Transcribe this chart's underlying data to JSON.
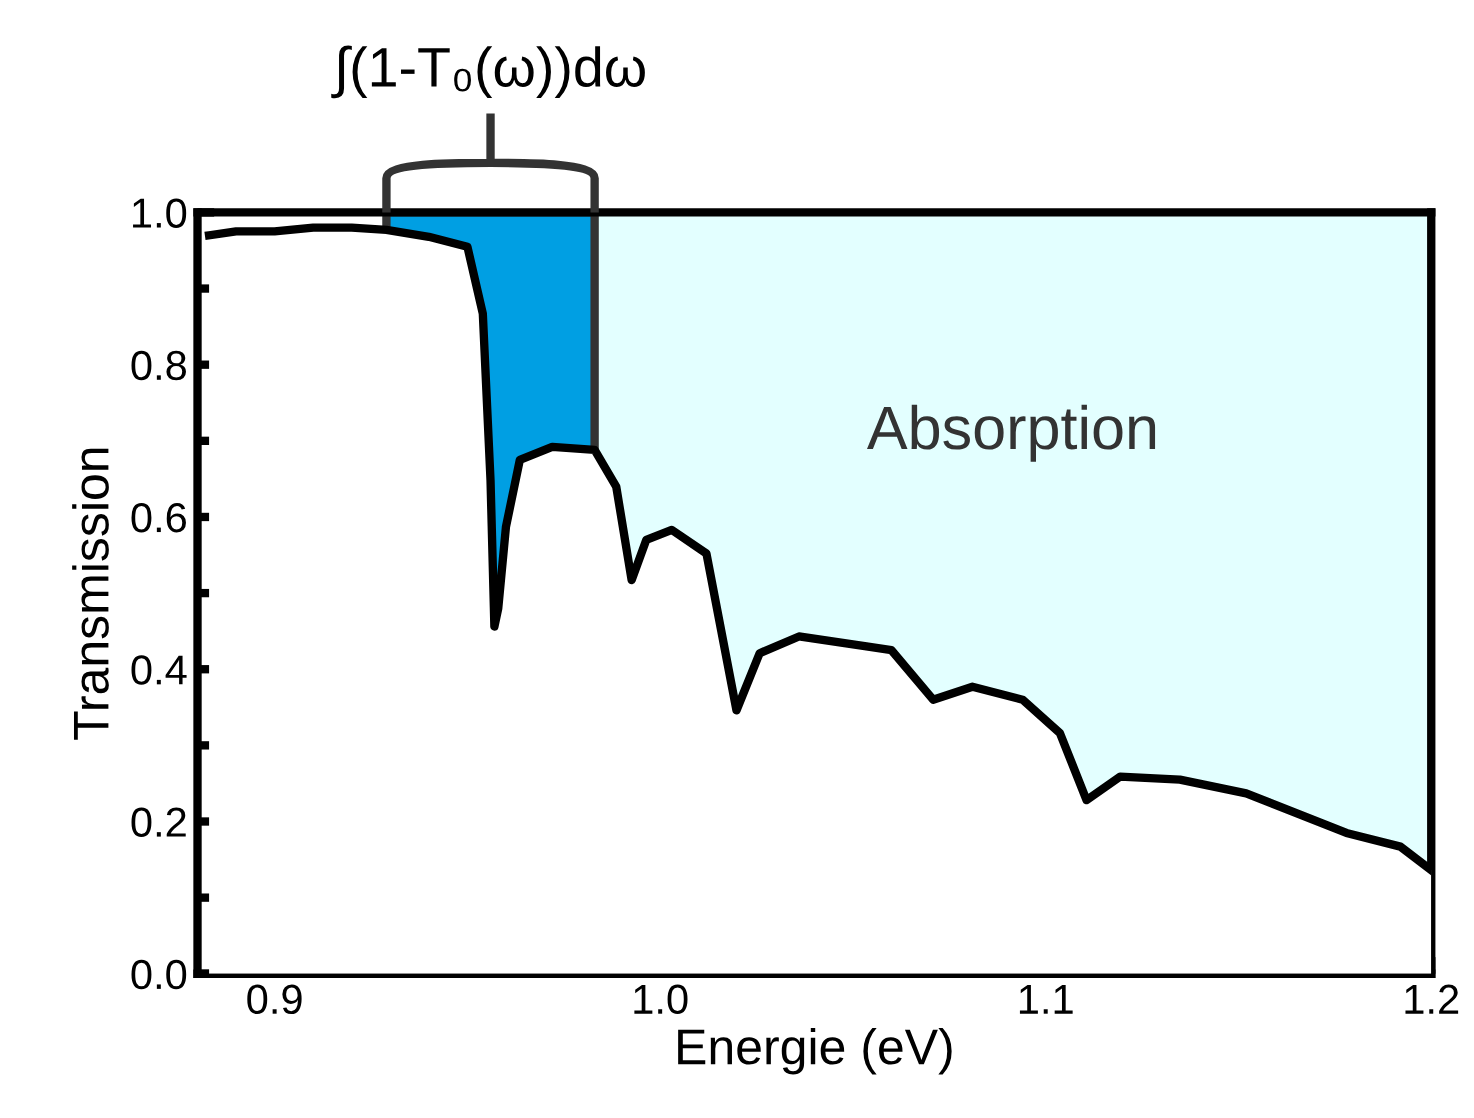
{
  "chart_data": {
    "type": "area",
    "xlabel": "Energie (eV)",
    "ylabel": "Transmission",
    "xlim": [
      0.88,
      1.2
    ],
    "ylim": [
      0.0,
      1.0
    ],
    "xticks": [
      0.9,
      {
        "value": 0.95,
        "label": null
      },
      {
        "value": 1,
        "label": "1.0"
      },
      {
        "value": 1.05,
        "label": null
      },
      1.1,
      {
        "value": 1.15,
        "label": null
      },
      1.2
    ],
    "yticks": [
      {
        "value": 0,
        "label": "0.0"
      },
      {
        "value": 0.1,
        "label": null
      },
      0.2,
      {
        "value": 0.3,
        "label": null
      },
      0.4,
      {
        "value": 0.5,
        "label": null
      },
      0.6,
      {
        "value": 0.7,
        "label": null
      },
      0.8,
      {
        "value": 0.9,
        "label": null
      },
      {
        "value": 1,
        "label": "1.0"
      }
    ],
    "grid": false,
    "legend": false,
    "marker": "none",
    "line_style": "solid",
    "series": [
      {
        "color": "#000000",
        "x": [
          0.883,
          0.89,
          0.9,
          0.91,
          0.92,
          0.929,
          0.94,
          0.95,
          0.954,
          0.956,
          0.957,
          0.958,
          0.96,
          0.9636,
          0.972,
          0.983,
          0.9886,
          0.9926,
          0.9964,
          1.003,
          1.012,
          1.0198,
          1.0258,
          1.036,
          1.0535,
          1.06,
          1.0708,
          1.081,
          1.094,
          1.1037,
          1.1106,
          1.1193,
          1.1348,
          1.152,
          1.178,
          1.192,
          1.2
        ],
        "values": [
          0.97,
          0.975,
          0.975,
          0.98,
          0.98,
          0.977,
          0.968,
          0.955,
          0.867,
          0.648,
          0.456,
          0.48,
          0.587,
          0.675,
          0.692,
          0.688,
          0.64,
          0.517,
          0.57,
          0.583,
          0.552,
          0.346,
          0.421,
          0.443,
          0.43,
          0.425,
          0.36,
          0.377,
          0.36,
          0.316,
          0.228,
          0.259,
          0.255,
          0.237,
          0.185,
          0.167,
          0.136
        ]
      }
    ],
    "bands": [
      {
        "axis": "x",
        "from": 0.929,
        "to": 0.983,
        "color": "#009fe3",
        "label": "∫(1-T₀(ω))dω"
      },
      {
        "axis": "x",
        "from": 0.983,
        "to": 1.2,
        "color": "#e3ffff",
        "label": "Absorption"
      }
    ]
  }
}
